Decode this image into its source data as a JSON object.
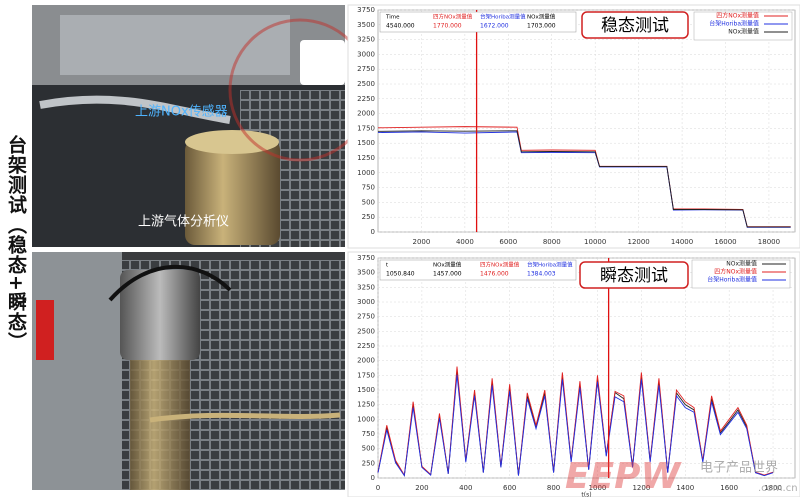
{
  "left_title": "台架测试（稳态+瞬态）",
  "photos": [
    {
      "labels": [
        "上游NOx传感器",
        "上游气体分析仪"
      ]
    },
    {
      "labels": []
    }
  ],
  "watermark": {
    "brand": "EEPW",
    "name": "电子产品世界",
    "domain": ".com.cn"
  },
  "chart_data": [
    {
      "type": "line",
      "title": "稳态测试",
      "readout": [
        {
          "name": "Time",
          "value": 4540,
          "label": "4540.000",
          "color": "#000000"
        },
        {
          "name": "四方NOx测量值",
          "value": 1770,
          "label": "1770.000",
          "color": "#e02020"
        },
        {
          "name": "台架Horiba测量值",
          "value": 1672,
          "label": "1672.000",
          "color": "#2030e0"
        },
        {
          "name": "NOx测量值",
          "value": 1703,
          "label": "1703.000",
          "color": "#000000"
        }
      ],
      "x": [
        0,
        2000,
        4000,
        6400,
        6600,
        8000,
        10000,
        10200,
        12000,
        13300,
        13600,
        15000,
        16800,
        17000,
        19000
      ],
      "series": [
        {
          "name": "四方NOx测量值",
          "color": "#e02020",
          "values": [
            1760,
            1770,
            1780,
            1770,
            1380,
            1385,
            1380,
            1110,
            1110,
            1110,
            390,
            390,
            380,
            90,
            90
          ]
        },
        {
          "name": "台架Horiba测量值",
          "color": "#2030e0",
          "values": [
            1680,
            1690,
            1672,
            1690,
            1340,
            1345,
            1340,
            1100,
            1100,
            1100,
            370,
            375,
            370,
            80,
            80
          ]
        },
        {
          "name": "NOx测量值",
          "color": "#222222",
          "values": [
            1700,
            1710,
            1703,
            1710,
            1355,
            1360,
            1355,
            1105,
            1105,
            1105,
            380,
            380,
            375,
            85,
            85
          ]
        }
      ],
      "xlim": [
        0,
        19200
      ],
      "xticks": [
        2000,
        4000,
        6000,
        8000,
        10000,
        12000,
        14000,
        16000,
        18000
      ],
      "ylim": [
        0,
        3750
      ],
      "yticks": [
        0,
        250,
        500,
        750,
        1000,
        1250,
        1500,
        1750,
        2000,
        2250,
        2500,
        2750,
        3000,
        3250,
        3500,
        3750
      ],
      "grid": true
    },
    {
      "type": "line",
      "title": "瞬态测试",
      "xlabel": "t(s)",
      "readout": [
        {
          "name": "t",
          "value": 1050.84,
          "label": "1050.840",
          "color": "#000000"
        },
        {
          "name": "NOx测量值",
          "value": 1457,
          "label": "1457.000",
          "color": "#000000"
        },
        {
          "name": "四方NOx测量值",
          "value": 1476,
          "label": "1476.000",
          "color": "#e02020"
        },
        {
          "name": "台架Horiba测量值",
          "value": 1384.003,
          "label": "1384.003",
          "color": "#2030e0"
        }
      ],
      "x": [
        0,
        40,
        80,
        120,
        160,
        200,
        240,
        280,
        320,
        360,
        400,
        440,
        480,
        520,
        560,
        600,
        640,
        680,
        720,
        760,
        800,
        840,
        880,
        920,
        960,
        1000,
        1040,
        1080,
        1120,
        1160,
        1200,
        1240,
        1280,
        1320,
        1360,
        1400,
        1440,
        1480,
        1520,
        1560,
        1600,
        1640,
        1680,
        1720,
        1760,
        1800
      ],
      "series": [
        {
          "name": "NOx测量值",
          "color": "#222222",
          "values": [
            95,
            860,
            280,
            45,
            1250,
            190,
            55,
            1060,
            75,
            1820,
            290,
            1450,
            95,
            1640,
            190,
            1540,
            45,
            1400,
            870,
            1450,
            95,
            1730,
            290,
            1590,
            145,
            1690,
            385,
            1457,
            1350,
            190,
            1730,
            290,
            1640,
            95,
            1450,
            1250,
            1160,
            290,
            1350,
            770,
            960,
            1160,
            870,
            95,
            45,
            95
          ]
        },
        {
          "name": "四方NOx测量值",
          "color": "#e02020",
          "values": [
            100,
            900,
            300,
            50,
            1300,
            200,
            60,
            1100,
            80,
            1900,
            300,
            1500,
            100,
            1700,
            200,
            1600,
            50,
            1450,
            900,
            1500,
            100,
            1800,
            300,
            1650,
            150,
            1750,
            400,
            1476,
            1400,
            200,
            1800,
            300,
            1700,
            100,
            1500,
            1300,
            1200,
            300,
            1400,
            800,
            1000,
            1200,
            900,
            100,
            50,
            100
          ]
        },
        {
          "name": "台架Horiba测量值",
          "color": "#2030e0",
          "values": [
            90,
            820,
            260,
            40,
            1200,
            180,
            50,
            1020,
            70,
            1760,
            270,
            1400,
            90,
            1580,
            180,
            1480,
            40,
            1350,
            840,
            1400,
            90,
            1680,
            270,
            1540,
            140,
            1640,
            370,
            1384.003,
            1300,
            180,
            1680,
            270,
            1580,
            90,
            1400,
            1200,
            1120,
            270,
            1300,
            740,
            930,
            1120,
            840,
            90,
            40,
            90
          ]
        }
      ],
      "xlim": [
        0,
        1900
      ],
      "xticks": [
        0,
        200,
        400,
        600,
        800,
        1000,
        1200,
        1400,
        1600,
        1800
      ],
      "ylim": [
        0,
        3750
      ],
      "yticks": [
        0,
        250,
        500,
        750,
        1000,
        1250,
        1500,
        1750,
        2000,
        2250,
        2500,
        2750,
        3000,
        3250,
        3500,
        3750
      ],
      "grid": true
    }
  ]
}
